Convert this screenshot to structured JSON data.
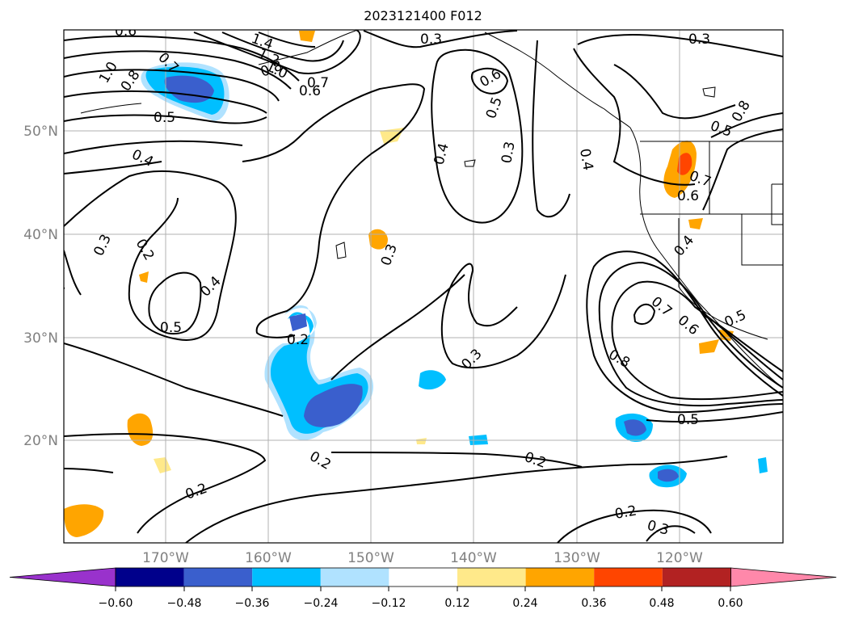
{
  "title": "2023121400 F012",
  "map": {
    "lat_labels": [
      "50°N",
      "40°N",
      "30°N",
      "20°N"
    ],
    "lon_labels": [
      "170°W",
      "160°W",
      "150°W",
      "140°W",
      "130°W",
      "120°W"
    ],
    "axis_label_color": "#808080",
    "gridlines": true,
    "contour_color": "#000000",
    "contour_labels": [
      "0.6",
      "1.4",
      "1.2",
      "1.0",
      "0.8",
      "0.7",
      "0.7",
      "1.0",
      "0.8",
      "0.6",
      "0.5",
      "0.3",
      "0.3",
      "0.6",
      "0.5",
      "0.4",
      "0.3",
      "0.4",
      "0.4",
      "0.2",
      "0.3",
      "0.5",
      "0.4",
      "0.3",
      "0.4",
      "0.2",
      "0.3",
      "0.2",
      "0.2",
      "0.8",
      "0.7",
      "0.6",
      "0.6",
      "0.7",
      "0.5",
      "0.4",
      "0.5",
      "0.8",
      "0.5",
      "0.2",
      "0.3"
    ]
  },
  "colorbar": {
    "ticks": [
      "−0.60",
      "−0.48",
      "−0.36",
      "−0.24",
      "−0.12",
      "0.12",
      "0.24",
      "0.36",
      "0.48",
      "0.60"
    ],
    "colors": [
      "#9932cc",
      "#00008b",
      "#3a5fcd",
      "#00bfff",
      "#b0e2ff",
      "#ffffff",
      "#ffe98a",
      "#ffa500",
      "#ff4500",
      "#b22222",
      "#ff88aa"
    ]
  }
}
